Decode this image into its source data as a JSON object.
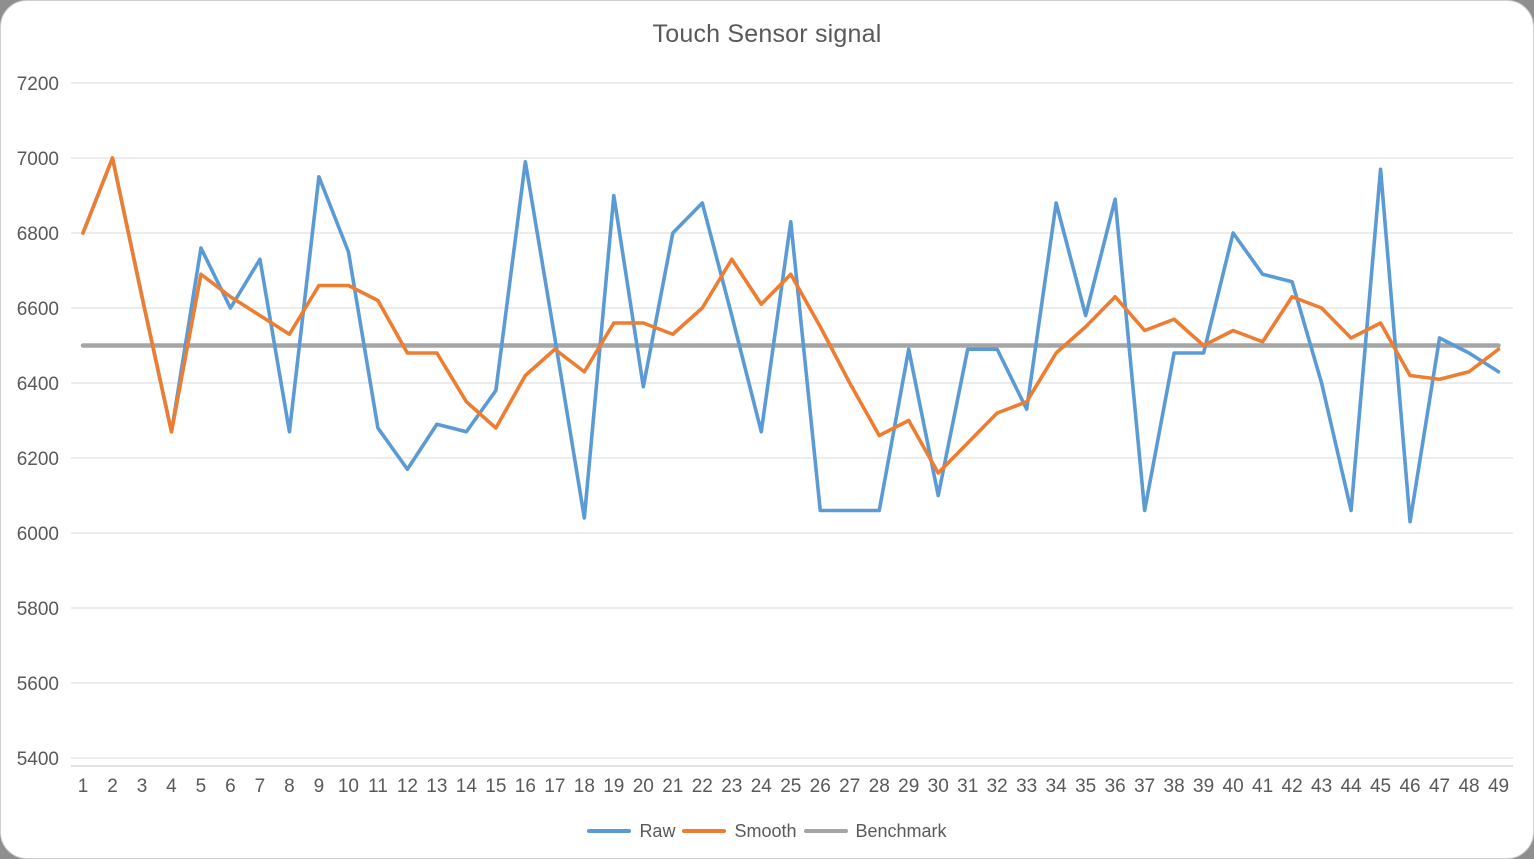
{
  "chart_data": {
    "type": "line",
    "title": "Touch Sensor signal",
    "xlabel": "",
    "ylabel": "",
    "ylim": [
      5400,
      7200
    ],
    "y_ticks": [
      5400,
      5600,
      5800,
      6000,
      6200,
      6400,
      6600,
      6800,
      7000,
      7200
    ],
    "x_categories": [
      1,
      2,
      3,
      4,
      5,
      6,
      7,
      8,
      9,
      10,
      11,
      12,
      13,
      14,
      15,
      16,
      17,
      18,
      19,
      20,
      21,
      22,
      23,
      24,
      25,
      26,
      27,
      28,
      29,
      30,
      31,
      32,
      33,
      34,
      35,
      36,
      37,
      38,
      39,
      40,
      41,
      42,
      43,
      44,
      45,
      46,
      47,
      48,
      49
    ],
    "grid": "horizontal",
    "legend_position": "bottom",
    "text_color": "#595959",
    "gridline_color": "#D9D9D9",
    "series": [
      {
        "name": "Raw",
        "color": "#5B9BD5",
        "values": [
          6800,
          7000,
          6630,
          6270,
          6760,
          6600,
          6730,
          6270,
          6950,
          6750,
          6280,
          6170,
          6290,
          6270,
          6380,
          6990,
          6520,
          6040,
          6900,
          6390,
          6800,
          6880,
          6580,
          6270,
          6830,
          6060,
          6060,
          6060,
          6490,
          6100,
          6490,
          6490,
          6330,
          6880,
          6580,
          6890,
          6060,
          6480,
          6480,
          6800,
          6690,
          6670,
          6400,
          6060,
          6970,
          6030,
          6520,
          6480,
          6430
        ]
      },
      {
        "name": "Smooth",
        "color": "#ED7D31",
        "values": [
          6800,
          7000,
          6630,
          6270,
          6690,
          6630,
          6580,
          6530,
          6660,
          6660,
          6620,
          6480,
          6480,
          6350,
          6280,
          6420,
          6490,
          6430,
          6560,
          6560,
          6530,
          6600,
          6730,
          6610,
          6690,
          6550,
          6400,
          6260,
          6300,
          6160,
          6240,
          6320,
          6350,
          6480,
          6550,
          6630,
          6540,
          6570,
          6500,
          6540,
          6510,
          6630,
          6600,
          6520,
          6560,
          6420,
          6410,
          6430,
          6490
        ]
      },
      {
        "name": "Benchmark",
        "color": "#A5A5A5",
        "constant_value": 6500
      }
    ]
  }
}
